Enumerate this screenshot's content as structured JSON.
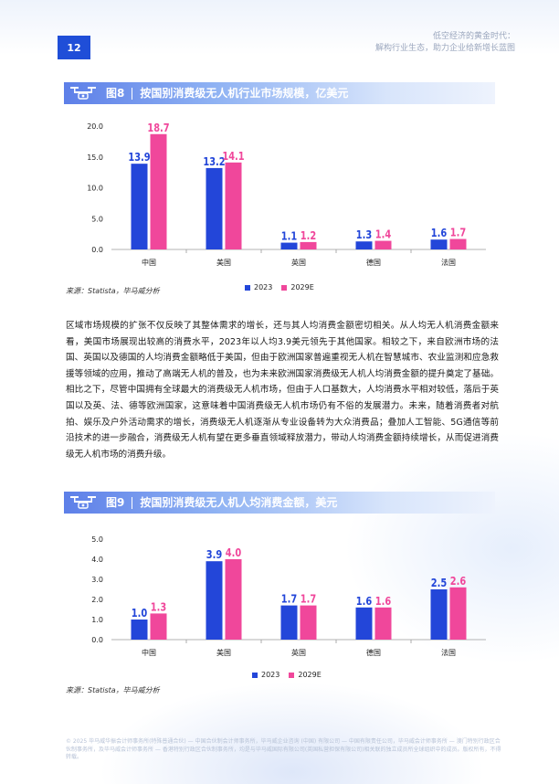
{
  "page": {
    "number": "12",
    "header_line1": "低空经济的黄金时代：",
    "header_line2": "解构行业生态，助力企业给新增长蓝图"
  },
  "colors": {
    "series_2023": "#2346d9",
    "series_2029": "#f0479b",
    "accent": "#1f4ed8"
  },
  "figure8": {
    "number": "图8",
    "title": "按国别消费级无人机行业市场规模，亿美元",
    "source": "来源：Statista，毕马威分析",
    "legend": [
      "2023",
      "2029E"
    ]
  },
  "figure9": {
    "number": "图9",
    "title": "按国别消费级无人机人均消费金额，美元",
    "source": "来源：Statista，毕马威分析",
    "legend": [
      "2023",
      "2029E"
    ]
  },
  "body_text": "区域市场规模的扩张不仅反映了其整体需求的增长，还与其人均消费金额密切相关。从人均无人机消费金额来看，美国市场展现出较高的消费水平，2023年以人均3.9美元领先于其他国家。相较之下，来自欧洲市场的法国、英国以及德国的人均消费金额略低于美国，但由于欧洲国家普遍重视无人机在智慧城市、农业监测和应急救援等领域的应用，推动了高端无人机的普及，也为未来欧洲国家消费级无人机人均消费金额的提升奠定了基础。相比之下，尽管中国拥有全球最大的消费级无人机市场，但由于人口基数大，人均消费水平相对较低，落后于英国以及英、法、德等欧洲国家，这意味着中国消费级无人机市场仍有不俗的发展潜力。未来，随着消费者对航拍、娱乐及户外活动需求的增长，消费级无人机逐渐从专业设备转为大众消费品；叠加人工智能、5G通信等前沿技术的进一步融合，消费级无人机有望在更多垂直领域释放潜力，带动人均消费金额持续增长，从而促进消费级无人机市场的消费升级。",
  "footer": "© 2025 毕马威华振会计师事务所(特殊普通合伙) — 中国合伙制会计师事务所，毕马威企业咨询 (中国) 有限公司 — 中国有限责任公司，毕马威会计师事务所 — 澳门特别行政区合伙制事务所，及毕马威会计师事务所 — 香港特别行政区合伙制事务所，均是与毕马威国际有限公司(英国私营担保有限公司)相关联的独立成员所全球组织中的成员。版权所有，不得转载。",
  "chart_data": [
    {
      "type": "bar",
      "title": "按国别消费级无人机行业市场规模，亿美元",
      "categories": [
        "中国",
        "美国",
        "英国",
        "德国",
        "法国"
      ],
      "series": [
        {
          "name": "2023",
          "values": [
            13.9,
            13.2,
            1.1,
            1.3,
            1.6
          ]
        },
        {
          "name": "2029E",
          "values": [
            18.7,
            14.1,
            1.2,
            1.4,
            1.7
          ]
        }
      ],
      "yticks": [
        "0.0",
        "5.0",
        "10.0",
        "15.0",
        "20.0"
      ],
      "ylim": [
        0,
        20
      ],
      "grid": false,
      "legend": "bottom-right"
    },
    {
      "type": "bar",
      "title": "按国别消费级无人机人均消费金额，美元",
      "categories": [
        "中国",
        "美国",
        "英国",
        "德国",
        "法国"
      ],
      "series": [
        {
          "name": "2023",
          "values": [
            1.0,
            3.9,
            1.7,
            1.6,
            2.5
          ]
        },
        {
          "name": "2029E",
          "values": [
            1.3,
            4.0,
            1.7,
            1.6,
            2.6
          ]
        }
      ],
      "yticks": [
        "0.0",
        "1.0",
        "2.0",
        "3.0",
        "4.0",
        "5.0"
      ],
      "ylim": [
        0,
        5
      ],
      "grid": false,
      "legend": "bottom-right"
    }
  ]
}
